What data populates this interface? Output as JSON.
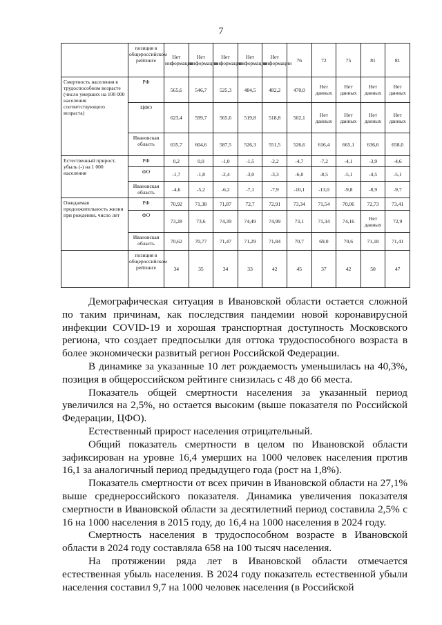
{
  "page_number": "7",
  "table": {
    "header_row": {
      "label": "позиция в общероссийском рейтинге",
      "values": [
        "Нет информации",
        "Нет информации",
        "Нет информации",
        "Нет информации",
        "Нет информации",
        "76",
        "72",
        "75",
        "81",
        "81"
      ]
    },
    "groups": [
      {
        "label": "Смертность населения в трудоспособном возрасте (число умерших на 100 000 населения соответствующего возраста)",
        "rows": [
          {
            "sub": "РФ",
            "values": [
              "565,6",
              "546,7",
              "525,3",
              "484,5",
              "482,2",
              "470,0",
              "Нет данных",
              "Нет данных",
              "Нет данных",
              "Нет данных"
            ]
          },
          {
            "sub": "ЦФО",
            "values": [
              "623,4",
              "599,7",
              "565,6",
              "519,8",
              "518,8",
              "502,1",
              "Нет данных",
              "Нет данных",
              "Нет данных",
              "Нет данных"
            ]
          },
          {
            "sub": "Ивановская область",
            "values": [
              "635,7",
              "604,6",
              "587,5",
              "526,3",
              "551,5",
              "526,6",
              "616,4",
              "665,1",
              "636,6",
              "658,0"
            ]
          }
        ]
      },
      {
        "label": "Естественный прирост, убыль (-) на 1 000 населения",
        "rows": [
          {
            "sub": "РФ",
            "values": [
              "0,2",
              "0,0",
              "-1,0",
              "-1,5",
              "-2,2",
              "-4,7",
              "-7,2",
              "-4,1",
              "-3,9",
              "-4,6"
            ]
          },
          {
            "sub": "ФО",
            "values": [
              "-1,7",
              "-1,8",
              "-2,4",
              "-3,0",
              "-3,3",
              "-6,0",
              "-8,5",
              "-5,1",
              "-4,5",
              "-5,1"
            ]
          },
          {
            "sub": "Ивановская область",
            "values": [
              "-4,6",
              "-5,2",
              "-6,2",
              "-7,1",
              "-7,9",
              "-10,1",
              "-13,0",
              "-9,8",
              "-8,9",
              "-9,7"
            ]
          }
        ]
      },
      {
        "label": "Ожидаемая продолжительность жизни при рождении, число лет",
        "rows": [
          {
            "sub": "РФ",
            "values": [
              "70,92",
              "71,38",
              "71,87",
              "72,7",
              "72,91",
              "73,34",
              "71,54",
              "70,06",
              "72,73",
              "73,41"
            ]
          },
          {
            "sub": "ФО",
            "values": [
              "73,28",
              "73,6",
              "74,39",
              "74,49",
              "74,99",
              "73,1",
              "71,34",
              "74,16",
              "Нет данных",
              "72,9"
            ]
          },
          {
            "sub": "Ивановская область",
            "values": [
              "70,62",
              "70,77",
              "71,47",
              "71,29",
              "71,84",
              "70,7",
              "69,0",
              "70,6",
              "71,18",
              "71,41"
            ]
          },
          {
            "sub": "позиция в общероссийском рейтинге",
            "values": [
              "34",
              "35",
              "34",
              "33",
              "42",
              "45",
              "37",
              "42",
              "50",
              "47"
            ]
          }
        ]
      }
    ]
  },
  "paragraphs": [
    "Демографическая ситуация в Ивановской области остается сложной по таким причинам, как последствия пандемии новой коронавирусной инфекции COVID-19 и хорошая транспортная доступность Московского региона, что создает предпосылки для оттока трудоспособного возраста в более экономически развитый регион Российской Федерации.",
    "В динамике за указанные 10 лет рождаемость уменьшилась на 40,3%, позиция в общероссийском рейтинге снизилась с 48 до 66 места.",
    "Показатель общей смертности населения за указанный период увеличился на 2,5%, но остается высоким (выше показателя по Российской Федерации, ЦФО).",
    "Естественный прирост населения отрицательный.",
    "Общий показатель смертности в целом по Ивановской области зафиксирован на уровне 16,4 умерших на 1000 человек населения против 16,1 за аналогичный период предыдущего года (рост на 1,8%).",
    "Показатель смертности от всех причин в Ивановской области на 27,1% выше среднероссийского показателя. Динамика увеличения показателя смертности в Ивановской области за десятилетний период составила 2,5% с 16 на 1000 населения в 2015 году, до 16,4 на 1000 населения в 2024 году.",
    "Смертность населения в трудоспособном возрасте в Ивановской области в 2024 году составляла 658 на 100 тысяч населения.",
    "На протяжении ряда лет в Ивановской области отмечается естественная убыль населения. В 2024 году показатель естественной убыли населения составил 9,7 на 1000 человек населения (в Российской"
  ]
}
